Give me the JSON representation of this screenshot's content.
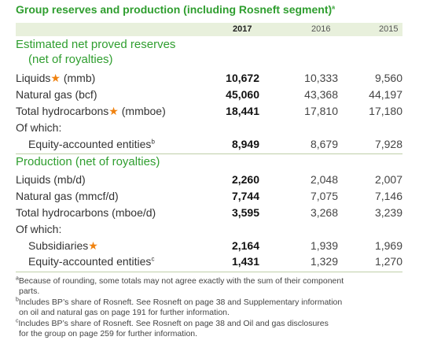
{
  "title": "Group reserves and production (including Rosneft segment)",
  "title_marker": "a",
  "years": [
    "2017",
    "2016",
    "2015"
  ],
  "reserves": {
    "heading_line1": "Estimated net proved reserves",
    "heading_line2": "(net of royalties)",
    "rows": [
      {
        "label": "Liquids",
        "star": "★",
        "unit": " (mmb)",
        "v2017": "10,672",
        "v2016": "10,333",
        "v2015": "9,560"
      },
      {
        "label": "Natural gas (bcf)",
        "v2017": "45,060",
        "v2016": "43,368",
        "v2015": "44,197"
      },
      {
        "label": "Total hydrocarbons",
        "star": "★",
        "unit": " (mmboe)",
        "v2017": "18,441",
        "v2016": "17,810",
        "v2015": "17,180"
      }
    ],
    "of_which": "Of which:",
    "equity": {
      "label": "Equity-accounted entities",
      "marker": "b",
      "v2017": "8,949",
      "v2016": "8,679",
      "v2015": "7,928"
    }
  },
  "production": {
    "heading": "Production (net of royalties)",
    "rows": [
      {
        "label": "Liquids (mb/d)",
        "v2017": "2,260",
        "v2016": "2,048",
        "v2015": "2,007"
      },
      {
        "label": "Natural gas (mmcf/d)",
        "v2017": "7,744",
        "v2016": "7,075",
        "v2015": "7,146"
      },
      {
        "label": "Total hydrocarbons (mboe/d)",
        "v2017": "3,595",
        "v2016": "3,268",
        "v2015": "3,239"
      }
    ],
    "of_which": "Of which:",
    "subsidiaries": {
      "label": "Subsidiaries",
      "star": "★",
      "v2017": "2,164",
      "v2016": "1,939",
      "v2015": "1,969"
    },
    "equity": {
      "label": "Equity-accounted entities",
      "marker": "c",
      "v2017": "1,431",
      "v2016": "1,329",
      "v2015": "1,270"
    }
  },
  "footnotes": {
    "a_marker": "a",
    "a_line1": "Because of rounding, some totals may not agree exactly with the sum of their component",
    "a_line2": "parts.",
    "b_marker": "b",
    "b_line1": "Includes BP’s share of Rosneft. See Rosneft on page 38 and Supplementary information",
    "b_line2": "on oil and natural gas on page 191 for further information.",
    "c_marker": "c",
    "c_line1": "Includes BP’s share of Rosneft. See Rosneft on page 38 and Oil and gas disclosures",
    "c_line2": "for the group on page 259 for further information."
  },
  "colors": {
    "accent": "#2f9e2f",
    "star": "#f0820f",
    "header_bg": "#e8f0dc"
  }
}
